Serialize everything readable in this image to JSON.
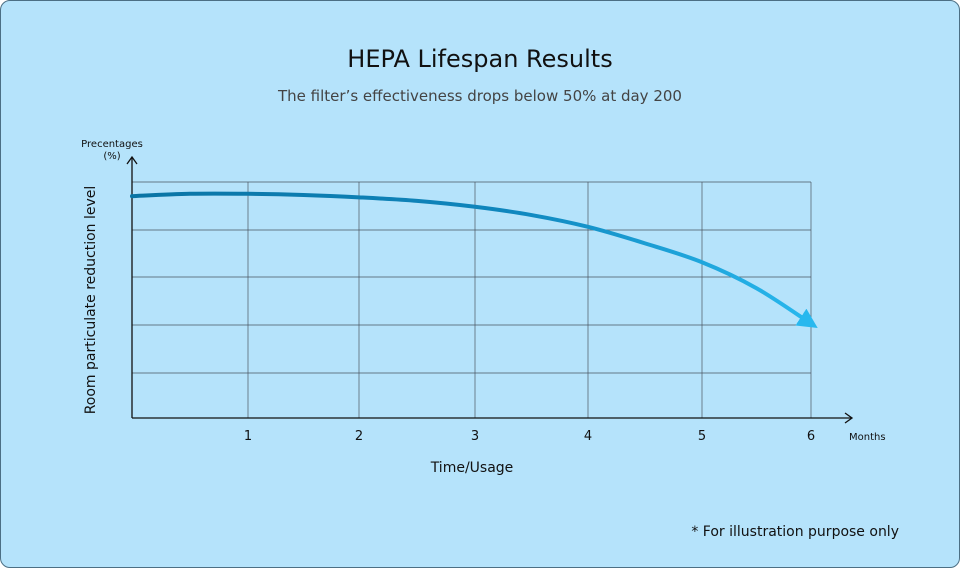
{
  "chart_data": {
    "type": "line",
    "title": "HEPA Lifespan Results",
    "subtitle": "The filter’s effectiveness drops below 50% at day 200",
    "xlabel": "Time/Usage",
    "x_unit": "Months",
    "ylabel": "Room particulate reduction level",
    "y_unit_line1": "Precentages",
    "y_unit_line2": "(%)",
    "x_ticks": [
      "1",
      "2",
      "3",
      "4",
      "5",
      "6"
    ],
    "xlim": [
      0,
      6
    ],
    "ylim": [
      0,
      100
    ],
    "grid": true,
    "series": [
      {
        "x": [
          0,
          0.5,
          1,
          1.5,
          2,
          2.5,
          3,
          3.5,
          4,
          4.5,
          5,
          5.5,
          6
        ],
        "y": [
          94,
          95,
          95,
          94.5,
          93.5,
          92,
          89.5,
          86,
          81,
          74,
          66,
          55,
          40
        ]
      }
    ],
    "colors": {
      "line_start": "#0a74a4",
      "line_end": "#28b8ee",
      "grid": "#4a5560",
      "background": "#b5e3fb"
    }
  },
  "footnote": "* For illustration purpose only"
}
